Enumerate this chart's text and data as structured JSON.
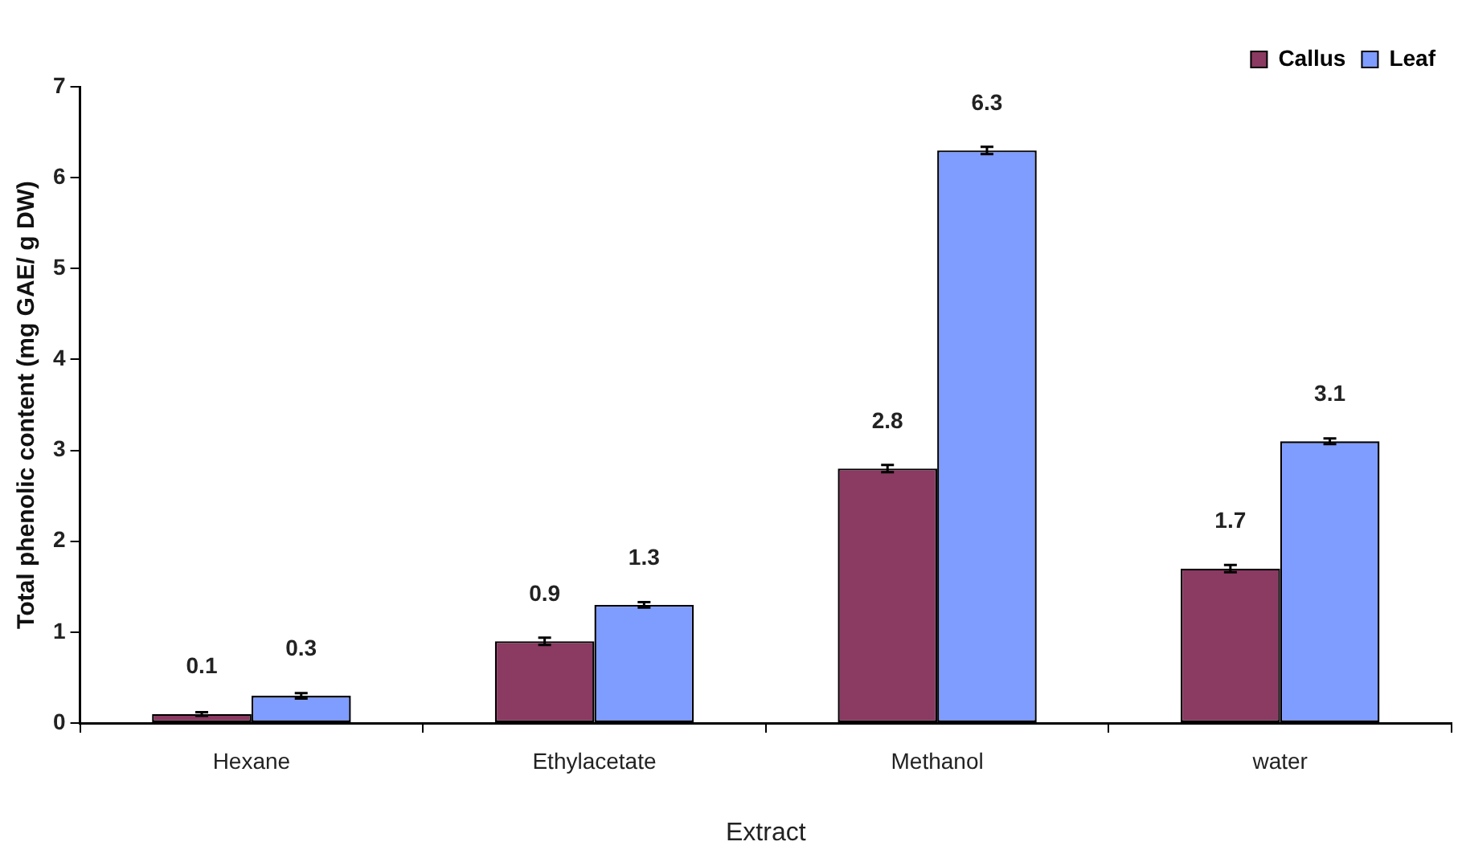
{
  "chart_data": {
    "type": "bar",
    "xlabel": "Extract",
    "ylabel": "Total phenolic content (mg GAE/ g DW)",
    "categories": [
      "Hexane",
      "Ethylacetate",
      "Methanol",
      "water"
    ],
    "series": [
      {
        "name": "Callus",
        "color": "#8b3a62",
        "values": [
          0.1,
          0.9,
          2.8,
          1.7
        ],
        "errors": [
          0.02,
          0.04,
          0.04,
          0.04
        ]
      },
      {
        "name": "Leaf",
        "color": "#7f9cff",
        "values": [
          0.3,
          1.3,
          6.3,
          3.1
        ],
        "errors": [
          0.03,
          0.03,
          0.04,
          0.03
        ]
      }
    ],
    "ylim": [
      0,
      7
    ],
    "yticks": [
      0,
      1,
      2,
      3,
      4,
      5,
      6,
      7
    ],
    "grid": false,
    "legend": "top right",
    "data_labels": true
  }
}
